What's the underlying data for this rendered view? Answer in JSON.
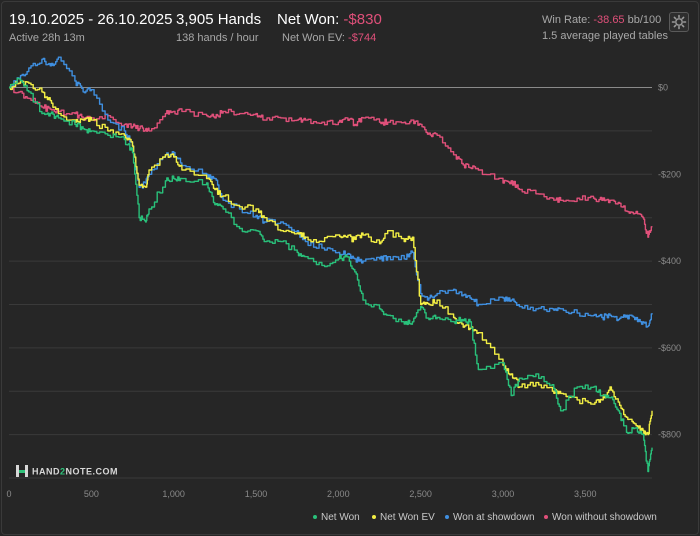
{
  "header": {
    "date_range": "19.10.2025 - 26.10.2025",
    "active": "Active 28h 13m",
    "hands": "3,905 Hands",
    "hands_per_hour": "138 hands / hour",
    "net_won_label": "Net Won:",
    "net_won_value": "-$830",
    "net_won_ev_label": "Net Won  EV:",
    "net_won_ev_value": "-$744",
    "win_rate_label": "Win Rate:",
    "win_rate_value": "-38.65",
    "win_rate_unit": "bb/100",
    "tables": "1.5 average played tables"
  },
  "settings_icon": "gear-icon",
  "logo": {
    "name": "HAND2NOTE.COM",
    "part1": "HAND",
    "part2": "2",
    "part3": "NOTE.COM"
  },
  "colors": {
    "background": "#262626",
    "net_won": "#29c07a",
    "net_won_ev": "#f2ee44",
    "won_at_showdown": "#3f8fe0",
    "won_without_showdown": "#e0507a",
    "negative_text": "#e0507a"
  },
  "chart_data": {
    "type": "line",
    "xlabel": "",
    "ylabel": "",
    "xlim": [
      0,
      3905
    ],
    "ylim": [
      -900,
      75
    ],
    "grid": true,
    "legend_position": "bottom-right",
    "x_ticks": [
      0,
      500,
      1000,
      1500,
      2000,
      2500,
      3000,
      3500
    ],
    "x_tick_labels": [
      "0",
      "500",
      "1,000",
      "1,500",
      "2,000",
      "2,500",
      "3,000",
      "3,500"
    ],
    "y_ticks": [
      0,
      -200,
      -400,
      -600,
      -800
    ],
    "y_tick_labels": [
      "$0",
      "-$200",
      "-$400",
      "-$600",
      "-$800"
    ],
    "series": [
      {
        "name": "Net Won",
        "color": "#29c07a",
        "x": [
          0,
          60,
          120,
          200,
          250,
          300,
          400,
          450,
          500,
          600,
          700,
          750,
          790,
          830,
          850,
          950,
          1000,
          1050,
          1200,
          1250,
          1300,
          1400,
          1500,
          1550,
          1650,
          1750,
          1800,
          1900,
          2000,
          2050,
          2100,
          2150,
          2250,
          2300,
          2400,
          2450,
          2500,
          2550,
          2600,
          2700,
          2750,
          2800,
          2850,
          3000,
          3050,
          3100,
          3200,
          3300,
          3350,
          3450,
          3550,
          3600,
          3650,
          3700,
          3750,
          3800,
          3850,
          3880,
          3905
        ],
        "y": [
          0,
          20,
          -10,
          -60,
          -60,
          -70,
          -85,
          -95,
          -100,
          -110,
          -120,
          -150,
          -300,
          -310,
          -280,
          -215,
          -210,
          -210,
          -220,
          -270,
          -280,
          -325,
          -330,
          -355,
          -355,
          -380,
          -390,
          -410,
          -395,
          -390,
          -425,
          -490,
          -510,
          -525,
          -545,
          -540,
          -505,
          -535,
          -530,
          -540,
          -535,
          -540,
          -650,
          -635,
          -710,
          -670,
          -660,
          -685,
          -745,
          -690,
          -690,
          -710,
          -715,
          -745,
          -795,
          -785,
          -800,
          -885,
          -830
        ]
      },
      {
        "name": "Net Won  EV",
        "color": "#f2ee44",
        "x": [
          0,
          60,
          120,
          200,
          250,
          300,
          400,
          450,
          500,
          600,
          700,
          750,
          790,
          830,
          850,
          950,
          1000,
          1050,
          1200,
          1250,
          1300,
          1400,
          1500,
          1550,
          1650,
          1750,
          1800,
          1900,
          2000,
          2050,
          2100,
          2150,
          2250,
          2300,
          2400,
          2450,
          2500,
          2550,
          2600,
          2700,
          2750,
          2800,
          2850,
          3000,
          3050,
          3100,
          3200,
          3300,
          3350,
          3450,
          3550,
          3600,
          3650,
          3700,
          3750,
          3800,
          3850,
          3880,
          3905
        ],
        "y": [
          0,
          10,
          10,
          -10,
          -30,
          -60,
          -80,
          -75,
          -75,
          -100,
          -110,
          -135,
          -225,
          -230,
          -190,
          -155,
          -160,
          -190,
          -210,
          -235,
          -250,
          -275,
          -280,
          -300,
          -330,
          -335,
          -345,
          -355,
          -340,
          -345,
          -350,
          -340,
          -360,
          -330,
          -355,
          -345,
          -500,
          -500,
          -490,
          -530,
          -545,
          -555,
          -565,
          -640,
          -660,
          -690,
          -680,
          -700,
          -705,
          -720,
          -730,
          -720,
          -690,
          -725,
          -760,
          -775,
          -790,
          -800,
          -745
        ]
      },
      {
        "name": "Won at showdown",
        "color": "#3f8fe0",
        "x": [
          0,
          60,
          120,
          200,
          250,
          300,
          400,
          450,
          500,
          600,
          700,
          750,
          790,
          830,
          850,
          950,
          1000,
          1050,
          1200,
          1250,
          1300,
          1400,
          1500,
          1550,
          1650,
          1750,
          1800,
          1900,
          2000,
          2050,
          2100,
          2150,
          2250,
          2300,
          2400,
          2450,
          2500,
          2550,
          2600,
          2700,
          2750,
          2800,
          2850,
          3000,
          3050,
          3100,
          3200,
          3300,
          3350,
          3450,
          3550,
          3600,
          3650,
          3700,
          3750,
          3800,
          3850,
          3880,
          3905
        ],
        "y": [
          0,
          20,
          45,
          65,
          50,
          70,
          15,
          -10,
          -5,
          -75,
          -100,
          -135,
          -230,
          -220,
          -200,
          -155,
          -150,
          -180,
          -200,
          -210,
          -260,
          -280,
          -295,
          -310,
          -310,
          -330,
          -355,
          -370,
          -380,
          -385,
          -395,
          -400,
          -395,
          -390,
          -395,
          -380,
          -475,
          -485,
          -475,
          -465,
          -480,
          -485,
          -500,
          -485,
          -490,
          -505,
          -510,
          -510,
          -510,
          -520,
          -525,
          -530,
          -525,
          -535,
          -525,
          -535,
          -540,
          -550,
          -520
        ]
      },
      {
        "name": "Won without showdown",
        "color": "#e0507a",
        "x": [
          0,
          60,
          120,
          200,
          250,
          300,
          400,
          450,
          500,
          600,
          700,
          750,
          790,
          830,
          850,
          950,
          1000,
          1050,
          1200,
          1250,
          1300,
          1400,
          1500,
          1550,
          1650,
          1750,
          1800,
          1900,
          2000,
          2050,
          2100,
          2150,
          2250,
          2300,
          2400,
          2450,
          2500,
          2550,
          2600,
          2700,
          2750,
          2800,
          2850,
          3000,
          3050,
          3100,
          3200,
          3300,
          3350,
          3450,
          3550,
          3600,
          3650,
          3700,
          3750,
          3800,
          3850,
          3880,
          3905
        ],
        "y": [
          0,
          -10,
          -25,
          -45,
          -50,
          -55,
          -60,
          -70,
          -70,
          -65,
          -85,
          -90,
          -95,
          -95,
          -100,
          -60,
          -55,
          -55,
          -65,
          -70,
          -55,
          -60,
          -60,
          -75,
          -70,
          -75,
          -75,
          -80,
          -80,
          -70,
          -85,
          -70,
          -80,
          -80,
          -80,
          -75,
          -85,
          -105,
          -110,
          -155,
          -175,
          -185,
          -190,
          -220,
          -215,
          -235,
          -245,
          -255,
          -260,
          -255,
          -255,
          -260,
          -260,
          -265,
          -285,
          -290,
          -300,
          -345,
          -320
        ]
      }
    ]
  },
  "legend": [
    {
      "label": "Net Won",
      "color": "#29c07a"
    },
    {
      "label": "Net Won  EV",
      "color": "#f2ee44"
    },
    {
      "label": "Won at showdown",
      "color": "#3f8fe0"
    },
    {
      "label": "Won without showdown",
      "color": "#e0507a"
    }
  ]
}
